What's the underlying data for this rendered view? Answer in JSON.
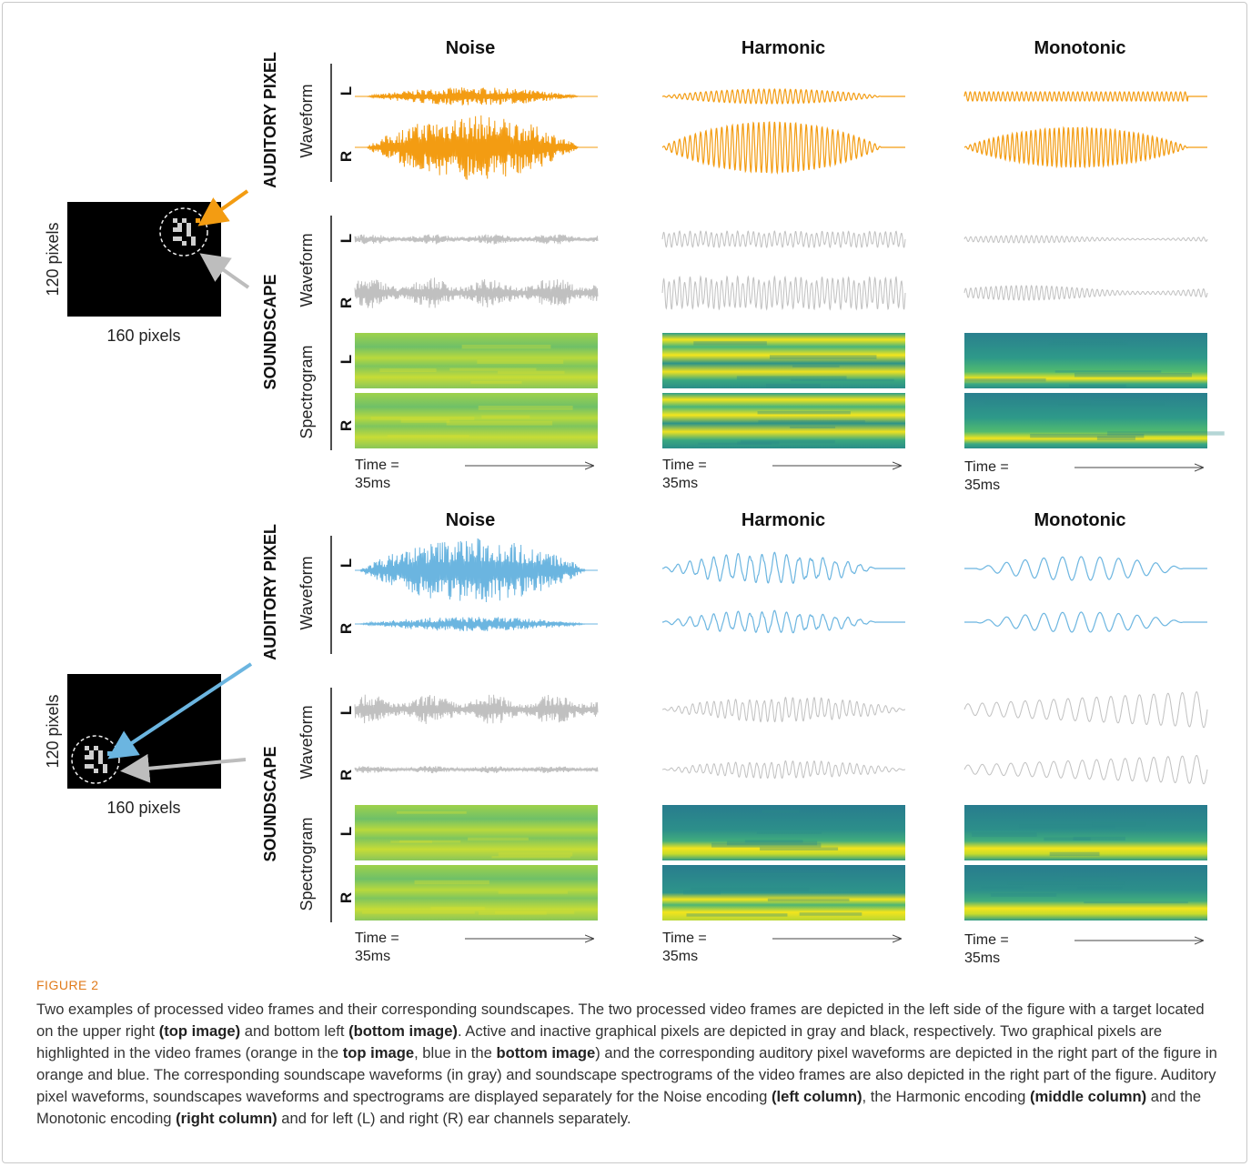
{
  "figure": {
    "labels": {
      "auditory_pixel": "AUDITORY PIXEL",
      "soundscape": "SOUNDSCAPE",
      "waveform": "Waveform",
      "spectrogram": "Spectrogram",
      "L": "L",
      "R": "R",
      "time_line1": "Time =",
      "time_line2": "35ms",
      "pixels_v": "120 pixels",
      "pixels_h": "160 pixels"
    },
    "columns": [
      "Noise",
      "Harmonic",
      "Monotonic"
    ],
    "colors": {
      "orange": "#f39c12",
      "blue": "#6bb5e0",
      "gray": "#c0c0c0"
    }
  },
  "caption": {
    "figure_label": "FIGURE 2",
    "segments": [
      {
        "t": "Two examples of processed video frames and their corresponding soundscapes. The two processed video frames are depicted in the left side of the figure with a target located on the upper right ",
        "b": false
      },
      {
        "t": "(top image)",
        "b": true
      },
      {
        "t": " and bottom left ",
        "b": false
      },
      {
        "t": "(bottom image)",
        "b": true
      },
      {
        "t": ". Active and inactive graphical pixels are depicted in gray and black, respectively. Two graphical pixels are highlighted in the video frames (orange in the ",
        "b": false
      },
      {
        "t": "top image",
        "b": true
      },
      {
        "t": ", blue in the ",
        "b": false
      },
      {
        "t": "bottom image",
        "b": true
      },
      {
        "t": ") and the corresponding auditory pixel waveforms are depicted in the right part of the figure in orange and blue. The corresponding soundscape waveforms (in gray) and soundscape spectrograms of the video frames are also depicted in the right part of the figure. Auditory pixel waveforms, soundscapes waveforms and spectrograms are displayed separately for the Noise encoding ",
        "b": false
      },
      {
        "t": "(left column)",
        "b": true
      },
      {
        "t": ", the Harmonic encoding ",
        "b": false
      },
      {
        "t": "(middle column)",
        "b": true
      },
      {
        "t": " and the Monotonic encoding ",
        "b": false
      },
      {
        "t": "(right column)",
        "b": true
      },
      {
        "t": " and for left (L) and right (R) ear channels separately.",
        "b": false
      }
    ]
  }
}
